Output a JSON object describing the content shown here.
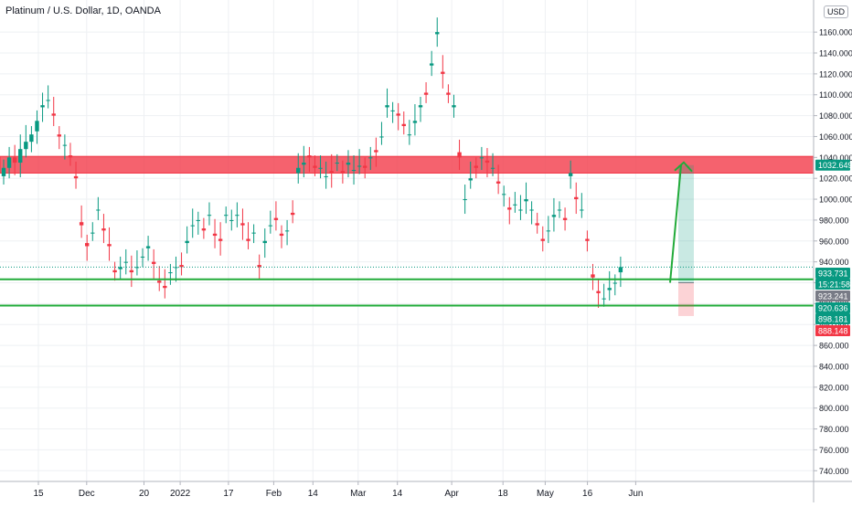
{
  "chart_title": "Platinum / U.S. Dollar, 1D, OANDA",
  "currency_label": "USD",
  "chart_data": {
    "type": "candlestick",
    "title": "Platinum / U.S. Dollar, 1D, OANDA",
    "ylim": [
      735,
      1175
    ],
    "y_ticks": [
      740,
      760,
      780,
      800,
      820,
      840,
      860,
      880,
      900,
      920,
      940,
      960,
      980,
      1000,
      1020,
      1040,
      1060,
      1080,
      1100,
      1120,
      1140,
      1160
    ],
    "y_tick_labels": [
      "740.000",
      "760.000",
      "780.000",
      "800.000",
      "820.000",
      "840.000",
      "860.000",
      "880.000",
      "900.000",
      "920.000",
      "940.000",
      "960.000",
      "980.000",
      "1000.000",
      "1020.000",
      "1040.000",
      "1060.000",
      "1080.000",
      "1100.000",
      "1120.000",
      "1140.000",
      "1160.000"
    ],
    "x_ticks": [
      {
        "label": "15",
        "date": "2021-11-15"
      },
      {
        "label": "Dec",
        "date": "2021-12-01"
      },
      {
        "label": "20",
        "date": "2021-12-20"
      },
      {
        "label": "2022",
        "date": "2022-01-01"
      },
      {
        "label": "17",
        "date": "2022-01-17"
      },
      {
        "label": "Feb",
        "date": "2022-02-01"
      },
      {
        "label": "14",
        "date": "2022-02-14"
      },
      {
        "label": "Mar",
        "date": "2022-03-01"
      },
      {
        "label": "14",
        "date": "2022-03-14"
      },
      {
        "label": "Apr",
        "date": "2022-04-01"
      },
      {
        "label": "18",
        "date": "2022-04-18"
      },
      {
        "label": "May",
        "date": "2022-05-02"
      },
      {
        "label": "16",
        "date": "2022-05-16"
      },
      {
        "label": "Jun",
        "date": "2022-06-01"
      }
    ],
    "closes": [
      1030,
      1040,
      1035,
      1048,
      1055,
      1062,
      1075,
      1090,
      1095,
      1080,
      1060,
      1052,
      1040,
      1020,
      975,
      955,
      968,
      990,
      970,
      955,
      930,
      935,
      940,
      930,
      935,
      945,
      955,
      938,
      920,
      915,
      930,
      935,
      935,
      960,
      975,
      980,
      970,
      985,
      965,
      960,
      985,
      980,
      985,
      975,
      960,
      968,
      935,
      960,
      975,
      980,
      965,
      970,
      985,
      1030,
      1035,
      1040,
      1030,
      1030,
      1022,
      1025,
      1035,
      1025,
      1035,
      1028,
      1032,
      1030,
      1040,
      1045,
      1060,
      1090,
      1085,
      1080,
      1070,
      1062,
      1075,
      1090,
      1100,
      1130,
      1160,
      1120,
      1100,
      1090,
      1040,
      1000,
      1020,
      1030,
      1040,
      1035,
      1030,
      1015,
      1005,
      990,
      995,
      990,
      1000,
      990,
      975,
      960,
      970,
      985,
      990,
      980,
      1025,
      1000,
      990,
      960,
      925,
      910,
      905,
      915,
      920,
      935
    ],
    "opens": [
      1022,
      1030,
      1040,
      1035,
      1048,
      1055,
      1065,
      1088,
      1095,
      1082,
      1062,
      1052,
      1042,
      1022,
      978,
      958,
      968,
      990,
      972,
      957,
      932,
      933,
      940,
      932,
      935,
      945,
      953,
      940,
      922,
      917,
      930,
      935,
      937,
      958,
      975,
      980,
      972,
      985,
      967,
      962,
      985,
      980,
      985,
      977,
      962,
      968,
      937,
      958,
      975,
      982,
      967,
      970,
      987,
      1025,
      1033,
      1042,
      1032,
      1030,
      1022,
      1027,
      1035,
      1027,
      1033,
      1028,
      1032,
      1032,
      1040,
      1047,
      1060,
      1088,
      1085,
      1082,
      1072,
      1062,
      1073,
      1088,
      1102,
      1128,
      1158,
      1122,
      1102,
      1088,
      1045,
      1000,
      1018,
      1032,
      1040,
      1037,
      1030,
      1017,
      1005,
      992,
      995,
      990,
      998,
      990,
      977,
      962,
      970,
      983,
      990,
      982,
      1022,
      1002,
      990,
      962,
      928,
      912,
      905,
      913,
      920,
      930
    ],
    "high": 1175,
    "low": 906,
    "resistance_zone": {
      "low": 1025,
      "high": 1041,
      "color": "#f23645"
    },
    "support_lines": [
      923.241,
      898.181
    ],
    "projection": {
      "from": 920,
      "to": 1032.649,
      "color": "#089981"
    },
    "price_tags": [
      {
        "label": "1032.649",
        "color": "#089981"
      },
      {
        "label": "933.731",
        "color": "#089981"
      },
      {
        "label": "15:21:58",
        "color": "#089981"
      },
      {
        "label": "923.241",
        "color": "#787b86"
      },
      {
        "label": "920.636",
        "color": "#089981"
      },
      {
        "label": "898.181",
        "color": "#089981"
      },
      {
        "label": "888.148",
        "color": "#f23645"
      }
    ],
    "up_color": "#089981",
    "down_color": "#f23645"
  }
}
